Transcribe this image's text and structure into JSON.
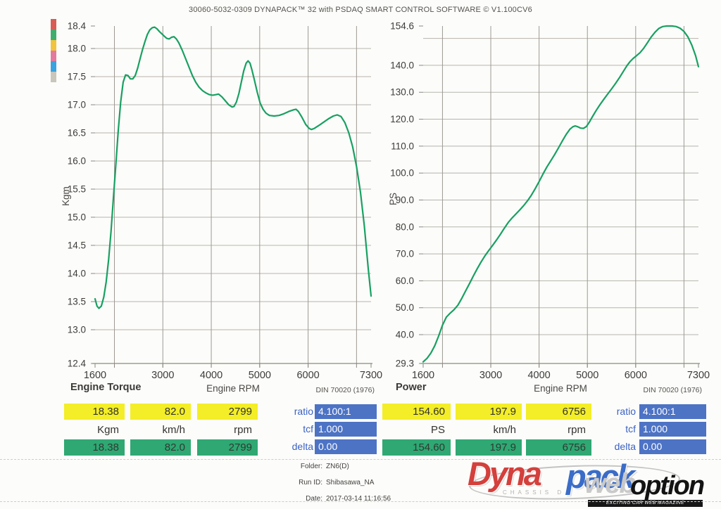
{
  "header": {
    "title": "30060-5032-0309 DYNAPACK™ 32 with PSDAQ SMART CONTROL SOFTWARE © V1.100CV6"
  },
  "legend_colors": [
    "#d85b56",
    "#3fae6d",
    "#f2c33c",
    "#e4799e",
    "#39a3df",
    "#c9c6bc"
  ],
  "chart_data": [
    {
      "type": "line",
      "name": "torque",
      "title": "Engine Torque",
      "xlabel": "Engine RPM",
      "standard": "DIN 70020 (1976)",
      "ylabel": "Kgm",
      "xlim": [
        1600,
        7300
      ],
      "ylim": [
        12.4,
        18.4
      ],
      "x_gridlines": [
        2000,
        3000,
        4000,
        5000,
        6000,
        7000
      ],
      "x_ticks": [
        1600,
        3000,
        4000,
        5000,
        6000,
        7300
      ],
      "x_tick_labels": [
        "1600",
        "3000",
        "4000",
        "5000",
        "6000",
        "7300"
      ],
      "y_gridlines": [
        18.0,
        17.5,
        17.0,
        16.5,
        16.0,
        15.5,
        15.0,
        14.5,
        14.0,
        13.5,
        13.0
      ],
      "y_ticks": [
        18.4,
        18.0,
        17.5,
        17.0,
        16.5,
        16.0,
        15.5,
        15.0,
        14.5,
        14.0,
        13.5,
        13.0,
        12.4
      ],
      "y_tick_labels": [
        "18.4",
        "18.0",
        "17.5",
        "17.0",
        "16.5",
        "16.0",
        "15.5",
        "15.0",
        "14.5",
        "14.0",
        "13.5",
        "13.0",
        "12.4"
      ],
      "series": [
        {
          "name": "torque-curve",
          "color": "#19a062",
          "points": [
            [
              1600,
              13.55
            ],
            [
              1640,
              13.42
            ],
            [
              1680,
              13.38
            ],
            [
              1730,
              13.42
            ],
            [
              1780,
              13.58
            ],
            [
              1830,
              13.85
            ],
            [
              1880,
              14.25
            ],
            [
              1930,
              14.75
            ],
            [
              1980,
              15.35
            ],
            [
              2030,
              15.95
            ],
            [
              2080,
              16.55
            ],
            [
              2130,
              17.05
            ],
            [
              2180,
              17.4
            ],
            [
              2230,
              17.53
            ],
            [
              2280,
              17.52
            ],
            [
              2330,
              17.46
            ],
            [
              2380,
              17.46
            ],
            [
              2430,
              17.52
            ],
            [
              2480,
              17.65
            ],
            [
              2530,
              17.82
            ],
            [
              2580,
              17.98
            ],
            [
              2630,
              18.12
            ],
            [
              2680,
              18.25
            ],
            [
              2730,
              18.33
            ],
            [
              2780,
              18.37
            ],
            [
              2830,
              18.38
            ],
            [
              2880,
              18.35
            ],
            [
              2930,
              18.3
            ],
            [
              2980,
              18.26
            ],
            [
              3030,
              18.22
            ],
            [
              3080,
              18.18
            ],
            [
              3130,
              18.17
            ],
            [
              3180,
              18.2
            ],
            [
              3230,
              18.21
            ],
            [
              3280,
              18.17
            ],
            [
              3330,
              18.1
            ],
            [
              3400,
              17.97
            ],
            [
              3470,
              17.82
            ],
            [
              3540,
              17.67
            ],
            [
              3610,
              17.52
            ],
            [
              3680,
              17.4
            ],
            [
              3750,
              17.31
            ],
            [
              3820,
              17.25
            ],
            [
              3890,
              17.21
            ],
            [
              3960,
              17.18
            ],
            [
              4030,
              17.17
            ],
            [
              4100,
              17.18
            ],
            [
              4150,
              17.19
            ],
            [
              4220,
              17.14
            ],
            [
              4290,
              17.07
            ],
            [
              4360,
              17.0
            ],
            [
              4430,
              16.96
            ],
            [
              4470,
              16.97
            ],
            [
              4520,
              17.05
            ],
            [
              4570,
              17.2
            ],
            [
              4620,
              17.4
            ],
            [
              4670,
              17.6
            ],
            [
              4720,
              17.74
            ],
            [
              4760,
              17.78
            ],
            [
              4800,
              17.74
            ],
            [
              4840,
              17.62
            ],
            [
              4890,
              17.44
            ],
            [
              4950,
              17.22
            ],
            [
              5010,
              17.03
            ],
            [
              5070,
              16.92
            ],
            [
              5130,
              16.85
            ],
            [
              5200,
              16.81
            ],
            [
              5300,
              16.8
            ],
            [
              5400,
              16.81
            ],
            [
              5500,
              16.84
            ],
            [
              5600,
              16.88
            ],
            [
              5700,
              16.91
            ],
            [
              5750,
              16.92
            ],
            [
              5800,
              16.88
            ],
            [
              5870,
              16.78
            ],
            [
              5950,
              16.65
            ],
            [
              6020,
              16.58
            ],
            [
              6070,
              16.56
            ],
            [
              6130,
              16.58
            ],
            [
              6220,
              16.63
            ],
            [
              6320,
              16.69
            ],
            [
              6420,
              16.75
            ],
            [
              6520,
              16.8
            ],
            [
              6600,
              16.82
            ],
            [
              6680,
              16.79
            ],
            [
              6760,
              16.68
            ],
            [
              6840,
              16.5
            ],
            [
              6920,
              16.25
            ],
            [
              7000,
              15.9
            ],
            [
              7080,
              15.45
            ],
            [
              7160,
              14.85
            ],
            [
              7240,
              14.1
            ],
            [
              7300,
              13.6
            ]
          ]
        }
      ]
    },
    {
      "type": "line",
      "name": "power",
      "title": "Power",
      "xlabel": "Engine RPM",
      "standard": "DIN 70020 (1976)",
      "ylabel": "PS",
      "xlim": [
        1600,
        7300
      ],
      "ylim": [
        29.3,
        154.6
      ],
      "x_gridlines": [
        2000,
        3000,
        4000,
        5000,
        6000,
        7000
      ],
      "x_ticks": [
        1600,
        3000,
        4000,
        5000,
        6000,
        7300
      ],
      "x_tick_labels": [
        "1600",
        "3000",
        "4000",
        "5000",
        "6000",
        "7300"
      ],
      "y_gridlines": [
        150,
        140,
        130,
        120,
        110,
        100,
        90,
        80,
        70,
        60,
        50,
        40
      ],
      "y_ticks": [
        154.6,
        140,
        130,
        120,
        110,
        100,
        90,
        80,
        70,
        60,
        50,
        40,
        29.3
      ],
      "y_tick_labels": [
        "154.6",
        "140.0",
        "130.0",
        "120.0",
        "110.0",
        "100.0",
        "90.0",
        "80.0",
        "70.0",
        "60.0",
        "50.0",
        "40.0",
        "29.3"
      ],
      "series": [
        {
          "name": "power-curve",
          "color": "#19a062",
          "points": [
            [
              1600,
              29.9
            ],
            [
              1680,
              31.2
            ],
            [
              1760,
              33.2
            ],
            [
              1840,
              35.9
            ],
            [
              1920,
              39.5
            ],
            [
              2000,
              43.5
            ],
            [
              2080,
              46.5
            ],
            [
              2160,
              48.0
            ],
            [
              2240,
              49.3
            ],
            [
              2320,
              51.0
            ],
            [
              2400,
              53.5
            ],
            [
              2480,
              56.3
            ],
            [
              2560,
              59.0
            ],
            [
              2640,
              61.8
            ],
            [
              2720,
              64.5
            ],
            [
              2800,
              67.0
            ],
            [
              2880,
              69.3
            ],
            [
              2960,
              71.3
            ],
            [
              3040,
              73.2
            ],
            [
              3120,
              75.2
            ],
            [
              3200,
              77.3
            ],
            [
              3280,
              79.5
            ],
            [
              3360,
              81.6
            ],
            [
              3440,
              83.3
            ],
            [
              3520,
              84.8
            ],
            [
              3600,
              86.3
            ],
            [
              3680,
              87.9
            ],
            [
              3760,
              89.7
            ],
            [
              3840,
              91.8
            ],
            [
              3920,
              94.2
            ],
            [
              4000,
              96.8
            ],
            [
              4080,
              99.6
            ],
            [
              4160,
              102.2
            ],
            [
              4240,
              104.5
            ],
            [
              4320,
              106.8
            ],
            [
              4400,
              109.3
            ],
            [
              4480,
              111.9
            ],
            [
              4560,
              114.3
            ],
            [
              4640,
              116.3
            ],
            [
              4700,
              117.2
            ],
            [
              4750,
              117.5
            ],
            [
              4800,
              117.2
            ],
            [
              4860,
              116.7
            ],
            [
              4920,
              116.6
            ],
            [
              4980,
              117.3
            ],
            [
              5040,
              118.9
            ],
            [
              5100,
              120.8
            ],
            [
              5180,
              123.2
            ],
            [
              5260,
              125.4
            ],
            [
              5340,
              127.4
            ],
            [
              5420,
              129.3
            ],
            [
              5500,
              131.2
            ],
            [
              5580,
              133.2
            ],
            [
              5660,
              135.3
            ],
            [
              5740,
              137.6
            ],
            [
              5820,
              139.9
            ],
            [
              5880,
              141.3
            ],
            [
              5950,
              142.6
            ],
            [
              6020,
              143.6
            ],
            [
              6090,
              144.7
            ],
            [
              6160,
              146.2
            ],
            [
              6240,
              148.3
            ],
            [
              6320,
              150.5
            ],
            [
              6400,
              152.3
            ],
            [
              6480,
              153.7
            ],
            [
              6560,
              154.4
            ],
            [
              6640,
              154.6
            ],
            [
              6756,
              154.6
            ],
            [
              6840,
              154.4
            ],
            [
              6920,
              153.8
            ],
            [
              7000,
              152.6
            ],
            [
              7080,
              150.6
            ],
            [
              7160,
              147.6
            ],
            [
              7240,
              143.6
            ],
            [
              7300,
              139.5
            ]
          ]
        }
      ]
    }
  ],
  "tables": [
    {
      "name": "torque-readout",
      "peak_row": [
        "18.38",
        "82.0",
        "2799"
      ],
      "unit_row": [
        "Kgm",
        "km/h",
        "rpm"
      ],
      "current_row": [
        "18.38",
        "82.0",
        "2799"
      ],
      "ratio_label": "ratio",
      "ratio_value": "4.100:1",
      "tcf_label": "tcf",
      "tcf_value": "1.000",
      "delta_label": "delta",
      "delta_value": "0.00"
    },
    {
      "name": "power-readout",
      "peak_row": [
        "154.60",
        "197.9",
        "6756"
      ],
      "unit_row": [
        "PS",
        "km/h",
        "rpm"
      ],
      "current_row": [
        "154.60",
        "197.9",
        "6756"
      ],
      "ratio_label": "ratio",
      "ratio_value": "4.100:1",
      "tcf_label": "tcf",
      "tcf_value": "1.000",
      "delta_label": "delta",
      "delta_value": "0.00"
    }
  ],
  "footer": {
    "folder_label": "Folder:",
    "folder_value": "ZN6(D)",
    "runid_label": "Run ID:",
    "runid_value": "Shibasawa_NA",
    "date_label": "Date:",
    "date_value": "2017-03-14 11:16:56"
  },
  "logo": {
    "part1": "Dyna",
    "part2": "pack",
    "chassis": "CHASSIS D",
    "web": "web",
    "option": "option",
    "magazine": "EXCITING CAR WEB MAGAZINE",
    "colors": {
      "part1": "#d4403c",
      "part2": "#3a6cc8",
      "web": "#c9c9c9",
      "option": "#131313"
    }
  },
  "style_colors": {
    "curve": "#19a062",
    "highlight_yellow": "#f3ee27",
    "highlight_green": "#2fa873",
    "ratio_box_blue": "#4d73c5",
    "ratio_label_blue": "#3b62c4"
  }
}
